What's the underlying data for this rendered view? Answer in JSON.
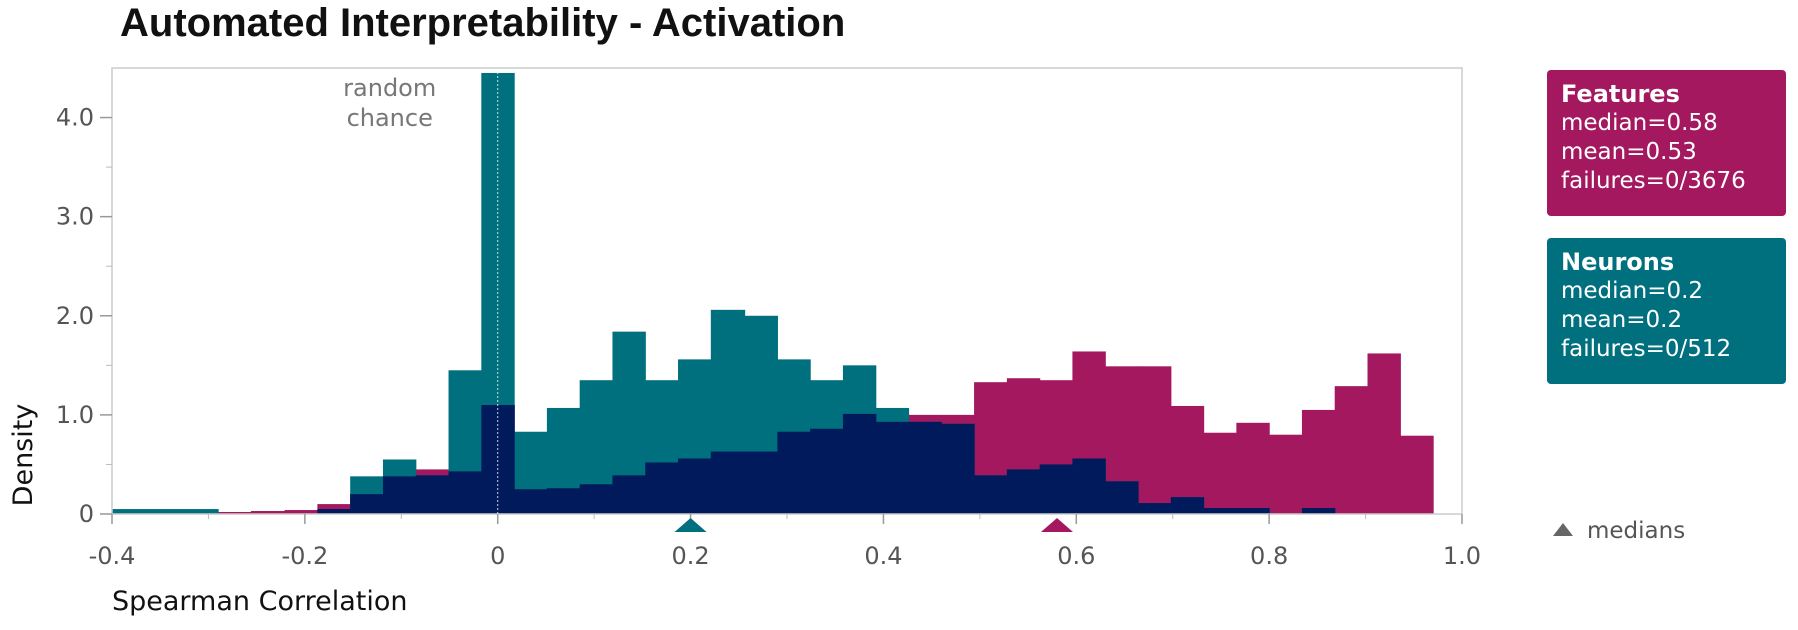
{
  "chart_data": {
    "type": "bar",
    "subtype": "histogram",
    "title": "Automated Interpretability -  Activation",
    "xlabel": "Spearman Correlation",
    "ylabel": "Density",
    "xlim": [
      -0.4,
      1.0
    ],
    "ylim": [
      0,
      4.5
    ],
    "x_ticks": [
      "-0.4",
      "-0.2",
      "0",
      "0.2",
      "0.4",
      "0.6",
      "0.8",
      "1.0"
    ],
    "y_ticks": [
      "0",
      "1.0",
      "2.0",
      "3.0",
      "4.0"
    ],
    "grid": false,
    "legend_position": "right",
    "annotation": {
      "lines": [
        "random",
        "chance"
      ],
      "x": 0
    },
    "colors": {
      "features": "#A3185E",
      "neurons": "#00707E",
      "overlap": "#001A5C",
      "medians_marker": "#666666"
    },
    "series": [
      {
        "name": "Features",
        "color": "#A3185E",
        "bins": [
          {
            "x0": -0.29,
            "x1": -0.256,
            "y": 0.02
          },
          {
            "x0": -0.256,
            "x1": -0.221,
            "y": 0.03
          },
          {
            "x0": -0.221,
            "x1": -0.187,
            "y": 0.04
          },
          {
            "x0": -0.187,
            "x1": -0.153,
            "y": 0.1
          },
          {
            "x0": -0.153,
            "x1": -0.119,
            "y": 0.2
          },
          {
            "x0": -0.119,
            "x1": -0.085,
            "y": 0.38
          },
          {
            "x0": -0.085,
            "x1": -0.051,
            "y": 0.45
          },
          {
            "x0": -0.051,
            "x1": -0.017,
            "y": 0.43
          },
          {
            "x0": -0.017,
            "x1": 0.017,
            "y": 1.1
          },
          {
            "x0": 0.017,
            "x1": 0.051,
            "y": 0.25
          },
          {
            "x0": 0.051,
            "x1": 0.085,
            "y": 0.26
          },
          {
            "x0": 0.085,
            "x1": 0.119,
            "y": 0.3
          },
          {
            "x0": 0.119,
            "x1": 0.153,
            "y": 0.39
          },
          {
            "x0": 0.153,
            "x1": 0.187,
            "y": 0.52
          },
          {
            "x0": 0.187,
            "x1": 0.221,
            "y": 0.56
          },
          {
            "x0": 0.221,
            "x1": 0.256,
            "y": 0.63
          },
          {
            "x0": 0.256,
            "x1": 0.29,
            "y": 0.63
          },
          {
            "x0": 0.29,
            "x1": 0.324,
            "y": 0.83
          },
          {
            "x0": 0.324,
            "x1": 0.358,
            "y": 0.86
          },
          {
            "x0": 0.358,
            "x1": 0.392,
            "y": 1.01
          },
          {
            "x0": 0.392,
            "x1": 0.426,
            "y": 0.93
          },
          {
            "x0": 0.426,
            "x1": 0.46,
            "y": 1.0
          },
          {
            "x0": 0.46,
            "x1": 0.494,
            "y": 1.0
          },
          {
            "x0": 0.494,
            "x1": 0.528,
            "y": 1.33
          },
          {
            "x0": 0.528,
            "x1": 0.562,
            "y": 1.37
          },
          {
            "x0": 0.562,
            "x1": 0.596,
            "y": 1.35
          },
          {
            "x0": 0.596,
            "x1": 0.63,
            "y": 1.64
          },
          {
            "x0": 0.63,
            "x1": 0.664,
            "y": 1.49
          },
          {
            "x0": 0.664,
            "x1": 0.698,
            "y": 1.49
          },
          {
            "x0": 0.698,
            "x1": 0.732,
            "y": 1.09
          },
          {
            "x0": 0.732,
            "x1": 0.766,
            "y": 0.82
          },
          {
            "x0": 0.766,
            "x1": 0.8,
            "y": 0.92
          },
          {
            "x0": 0.8,
            "x1": 0.834,
            "y": 0.8
          },
          {
            "x0": 0.834,
            "x1": 0.868,
            "y": 1.05
          },
          {
            "x0": 0.868,
            "x1": 0.902,
            "y": 1.29
          },
          {
            "x0": 0.902,
            "x1": 0.936,
            "y": 1.62
          },
          {
            "x0": 0.936,
            "x1": 0.97,
            "y": 0.79
          }
        ],
        "median": 0.58,
        "mean": 0.53,
        "failures": "0/3676"
      },
      {
        "name": "Neurons",
        "color": "#00707E",
        "bins": [
          {
            "x0": -0.4,
            "x1": -0.29,
            "y": 0.05
          },
          {
            "x0": -0.187,
            "x1": -0.153,
            "y": 0.05
          },
          {
            "x0": -0.153,
            "x1": -0.119,
            "y": 0.38
          },
          {
            "x0": -0.119,
            "x1": -0.085,
            "y": 0.55
          },
          {
            "x0": -0.085,
            "x1": -0.051,
            "y": 0.39
          },
          {
            "x0": -0.051,
            "x1": -0.017,
            "y": 1.45
          },
          {
            "x0": -0.017,
            "x1": 0.017,
            "y": 4.45
          },
          {
            "x0": 0.017,
            "x1": 0.051,
            "y": 0.83
          },
          {
            "x0": 0.051,
            "x1": 0.085,
            "y": 1.07
          },
          {
            "x0": 0.085,
            "x1": 0.119,
            "y": 1.35
          },
          {
            "x0": 0.119,
            "x1": 0.153,
            "y": 1.84
          },
          {
            "x0": 0.153,
            "x1": 0.187,
            "y": 1.35
          },
          {
            "x0": 0.187,
            "x1": 0.221,
            "y": 1.56
          },
          {
            "x0": 0.221,
            "x1": 0.256,
            "y": 2.06
          },
          {
            "x0": 0.256,
            "x1": 0.29,
            "y": 2.0
          },
          {
            "x0": 0.29,
            "x1": 0.324,
            "y": 1.56
          },
          {
            "x0": 0.324,
            "x1": 0.358,
            "y": 1.35
          },
          {
            "x0": 0.358,
            "x1": 0.392,
            "y": 1.5
          },
          {
            "x0": 0.392,
            "x1": 0.426,
            "y": 1.07
          },
          {
            "x0": 0.426,
            "x1": 0.46,
            "y": 0.93
          },
          {
            "x0": 0.46,
            "x1": 0.494,
            "y": 0.91
          },
          {
            "x0": 0.494,
            "x1": 0.528,
            "y": 0.39
          },
          {
            "x0": 0.528,
            "x1": 0.562,
            "y": 0.45
          },
          {
            "x0": 0.562,
            "x1": 0.596,
            "y": 0.5
          },
          {
            "x0": 0.596,
            "x1": 0.63,
            "y": 0.56
          },
          {
            "x0": 0.63,
            "x1": 0.664,
            "y": 0.33
          },
          {
            "x0": 0.664,
            "x1": 0.698,
            "y": 0.11
          },
          {
            "x0": 0.698,
            "x1": 0.732,
            "y": 0.17
          },
          {
            "x0": 0.732,
            "x1": 0.766,
            "y": 0.06
          },
          {
            "x0": 0.766,
            "x1": 0.8,
            "y": 0.06
          },
          {
            "x0": 0.834,
            "x1": 0.868,
            "y": 0.06
          }
        ],
        "median": 0.2,
        "mean": 0.2,
        "failures": "0/512"
      }
    ]
  },
  "legend": {
    "features": {
      "title": "Features",
      "median": "median=0.58",
      "mean": "mean=0.53",
      "failures": "failures=0/3676"
    },
    "neurons": {
      "title": "Neurons",
      "median": "median=0.2",
      "mean": "mean=0.2",
      "failures": "failures=0/512"
    },
    "medians_label": "medians"
  }
}
